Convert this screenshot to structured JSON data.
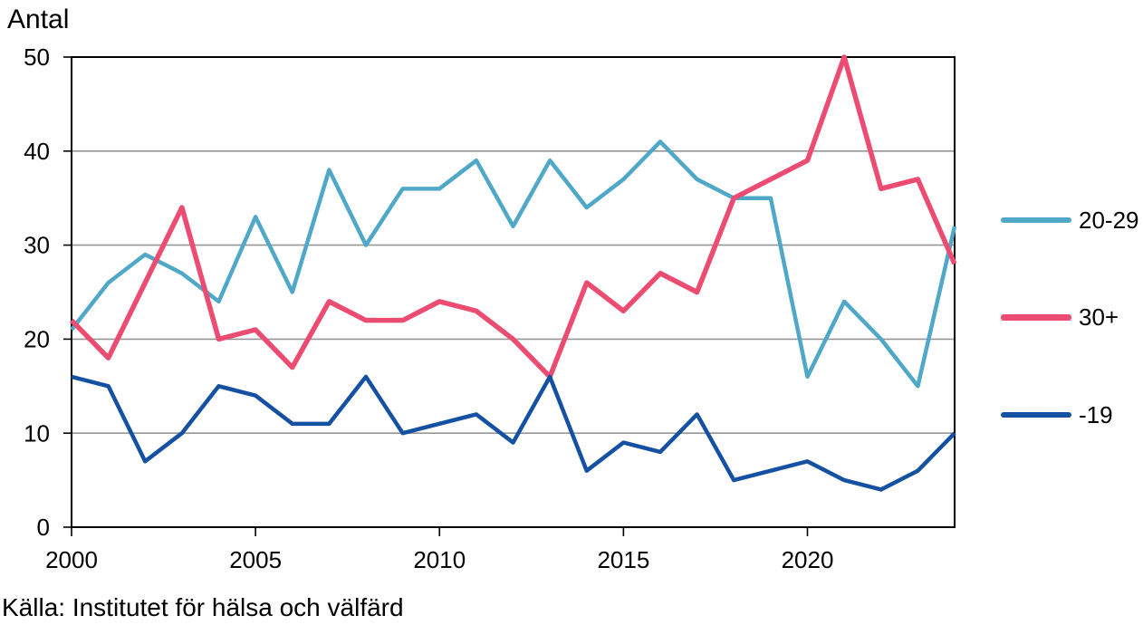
{
  "page": {
    "title": "Antal",
    "source": "Källa: Institutet för hälsa och välfärd"
  },
  "chart_data": {
    "type": "line",
    "title": "Antal",
    "xlabel": "",
    "ylabel": "Antal",
    "x": [
      2000,
      2001,
      2002,
      2003,
      2004,
      2005,
      2006,
      2007,
      2008,
      2009,
      2010,
      2011,
      2012,
      2013,
      2014,
      2015,
      2016,
      2017,
      2018,
      2019,
      2020,
      2021,
      2022,
      2023,
      2024
    ],
    "series": [
      {
        "name": "20-29",
        "color": "#4FA8C7",
        "width": 4.5,
        "values": [
          21,
          26,
          29,
          27,
          24,
          33,
          25,
          38,
          30,
          36,
          36,
          39,
          32,
          39,
          34,
          37,
          41,
          37,
          35,
          35,
          16,
          24,
          20,
          15,
          32
        ]
      },
      {
        "name": "30+",
        "color": "#EC4B72",
        "width": 5.5,
        "values": [
          22,
          18,
          26,
          34,
          20,
          21,
          17,
          24,
          22,
          22,
          24,
          23,
          20,
          16,
          26,
          23,
          27,
          25,
          35,
          37,
          39,
          50,
          36,
          37,
          28
        ]
      },
      {
        "name": "-19",
        "color": "#1551A2",
        "width": 4.5,
        "values": [
          16,
          15,
          7,
          10,
          15,
          14,
          11,
          11,
          16,
          10,
          11,
          12,
          9,
          16,
          6,
          9,
          8,
          12,
          5,
          6,
          7,
          5,
          4,
          6,
          10
        ]
      }
    ],
    "xlim": [
      2000,
      2024
    ],
    "ylim": [
      0,
      50
    ],
    "x_ticks": [
      2000,
      2005,
      2010,
      2015,
      2020
    ],
    "y_ticks": [
      0,
      10,
      20,
      30,
      40,
      50
    ],
    "grid": true,
    "legend_position": "right",
    "axis_color": "#000000",
    "grid_color": "#969696",
    "text_color": "#000000"
  }
}
